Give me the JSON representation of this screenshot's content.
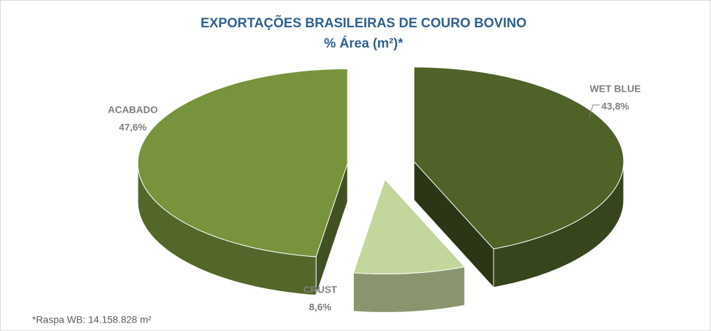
{
  "chart_data": {
    "type": "pie",
    "title": "EXPORTAÇÕES BRASILEIRAS DE COURO BOVINO",
    "subtitle": "% Área (m²)*",
    "categories": [
      "WET BLUE",
      "CRUST",
      "ACABADO"
    ],
    "values": [
      43.8,
      8.6,
      47.6
    ],
    "value_labels": [
      "43,8%",
      "8,6%",
      "47,6%"
    ],
    "colors": [
      "#4f6228",
      "#c3d69b",
      "#77933c"
    ],
    "annotation": "*Raspa WB: 14.158.828 m²"
  }
}
